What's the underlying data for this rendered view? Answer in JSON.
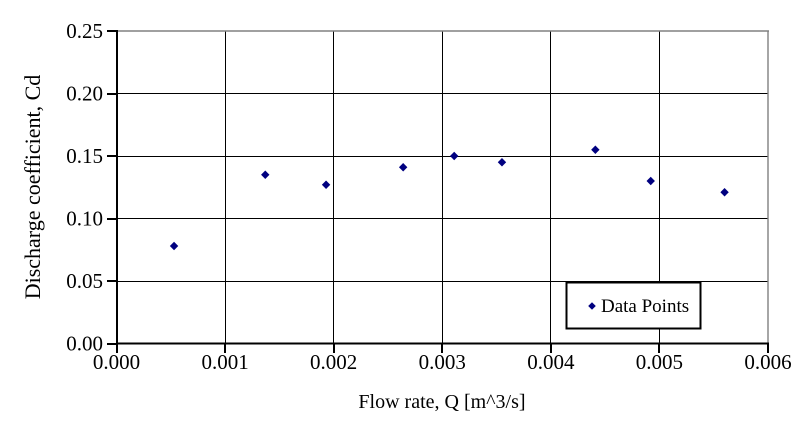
{
  "chart_data": {
    "type": "scatter",
    "title": "",
    "xlabel": "Flow rate, Q [m^3/s]",
    "ylabel": "Discharge coefficient, Cd",
    "xlim": [
      0,
      0.006
    ],
    "ylim": [
      0,
      0.25
    ],
    "x_ticks": [
      "0.000",
      "0.001",
      "0.002",
      "0.003",
      "0.004",
      "0.005",
      "0.006"
    ],
    "y_ticks": [
      "0.00",
      "0.05",
      "0.10",
      "0.15",
      "0.20",
      "0.25"
    ],
    "grid": true,
    "legend": {
      "position": "inside-bottom-right",
      "entries": [
        {
          "label": "Data Points",
          "marker": "diamond",
          "color": "#000080"
        }
      ]
    },
    "series": [
      {
        "name": "Data Points",
        "marker": "diamond",
        "color": "#000080",
        "points": [
          {
            "x": 0.00053,
            "y": 0.078
          },
          {
            "x": 0.00137,
            "y": 0.135
          },
          {
            "x": 0.00193,
            "y": 0.127
          },
          {
            "x": 0.00264,
            "y": 0.141
          },
          {
            "x": 0.00311,
            "y": 0.15
          },
          {
            "x": 0.00355,
            "y": 0.145
          },
          {
            "x": 0.00441,
            "y": 0.155
          },
          {
            "x": 0.00492,
            "y": 0.13
          },
          {
            "x": 0.0056,
            "y": 0.121
          }
        ]
      }
    ],
    "colors": {
      "marker": "#000080",
      "grid": "#000000",
      "axis": "#000000",
      "plot_border": "#808080",
      "background": "#ffffff"
    }
  }
}
